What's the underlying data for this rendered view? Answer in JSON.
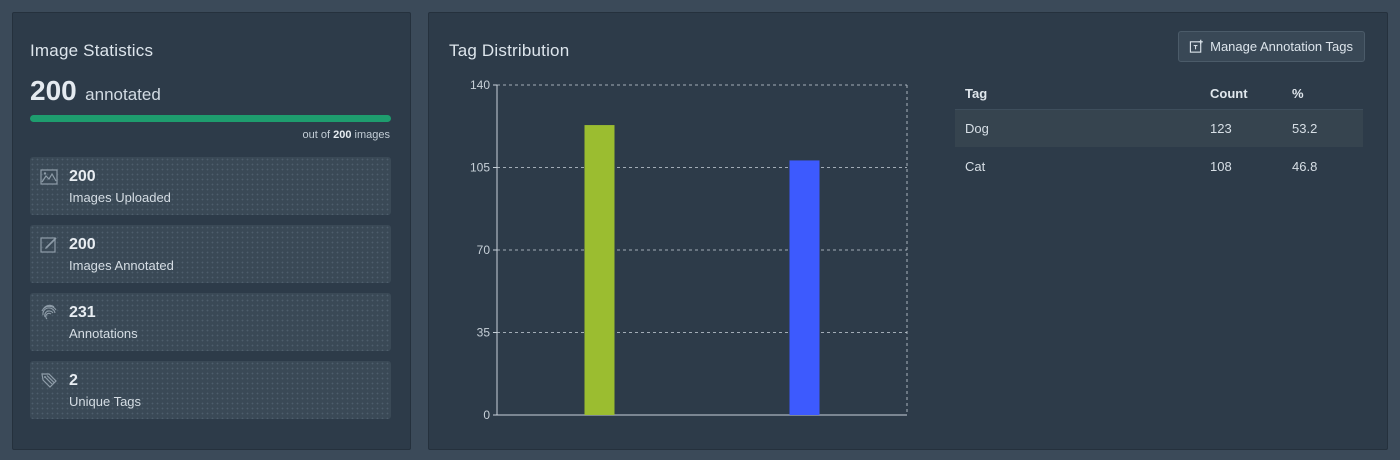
{
  "image_statistics": {
    "title": "Image Statistics",
    "annotated_count": "200",
    "annotated_word": "annotated",
    "progress_fraction": 1.0,
    "out_of_prefix": "out of",
    "out_of_total": "200",
    "out_of_suffix": "images",
    "cards": [
      {
        "icon": "image-icon",
        "value": "200",
        "label": "Images Uploaded"
      },
      {
        "icon": "edit-icon",
        "value": "200",
        "label": "Images Annotated"
      },
      {
        "icon": "fingerprint-icon",
        "value": "231",
        "label": "Annotations"
      },
      {
        "icon": "tag-icon",
        "value": "2",
        "label": "Unique Tags"
      }
    ]
  },
  "tag_distribution": {
    "title": "Tag Distribution",
    "manage_button_label": "Manage Annotation Tags",
    "table": {
      "headers": [
        "Tag",
        "Count",
        "%"
      ],
      "rows": [
        {
          "tag": "Dog",
          "count": "123",
          "percent": "53.2"
        },
        {
          "tag": "Cat",
          "count": "108",
          "percent": "46.8"
        }
      ]
    }
  },
  "colors": {
    "progress": "#1e9d6e",
    "dog_bar": "#9bbd30",
    "cat_bar": "#3d5afe"
  },
  "chart_data": {
    "type": "bar",
    "categories": [
      "Dog",
      "Cat"
    ],
    "values": [
      123,
      108
    ],
    "colors": [
      "#9bbd30",
      "#3d5afe"
    ],
    "ylim": [
      0,
      140
    ],
    "yticks": [
      "0",
      "35",
      "70",
      "105",
      "140"
    ],
    "grid": true,
    "title": "",
    "xlabel": "",
    "ylabel": ""
  }
}
